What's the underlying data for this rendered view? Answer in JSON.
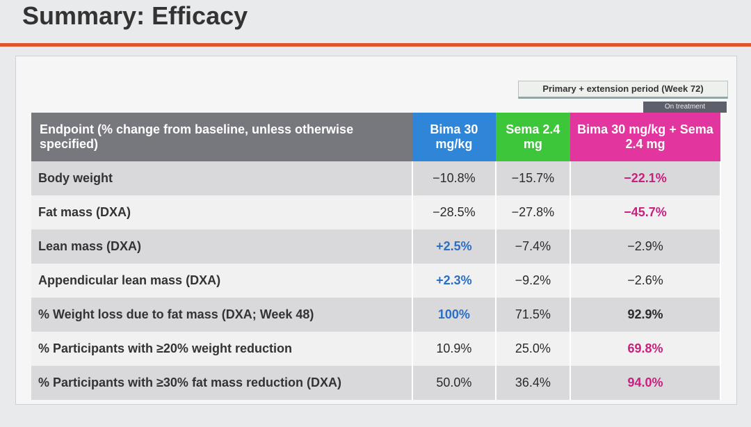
{
  "title": "Summary: Efficacy",
  "banner": "Primary + extension period (Week 72)",
  "badge": "On treatment",
  "table": {
    "header": [
      "Endpoint (% change from baseline, unless otherwise specified)",
      "Bima 30 mg/kg",
      "Sema 2.4 mg",
      "Bima 30 mg/kg + Sema 2.4 mg"
    ],
    "rows": [
      [
        "Body weight",
        "−10.8%",
        "−15.7%",
        "−22.1%"
      ],
      [
        "Fat mass (DXA)",
        "−28.5%",
        "−27.8%",
        "−45.7%"
      ],
      [
        "Lean mass (DXA)",
        "+2.5%",
        "−7.4%",
        "−2.9%"
      ],
      [
        "Appendicular lean mass (DXA)",
        "+2.3%",
        "−9.2%",
        "−2.6%"
      ],
      [
        "% Weight loss due to fat mass (DXA; Week 48)",
        "100%",
        "71.5%",
        "92.9%"
      ],
      [
        "% Participants with ≥20% weight reduction",
        "10.9%",
        "25.0%",
        "69.8%"
      ],
      [
        "% Participants with ≥30% fat mass reduction (DXA)",
        "50.0%",
        "36.4%",
        "94.0%"
      ]
    ]
  }
}
